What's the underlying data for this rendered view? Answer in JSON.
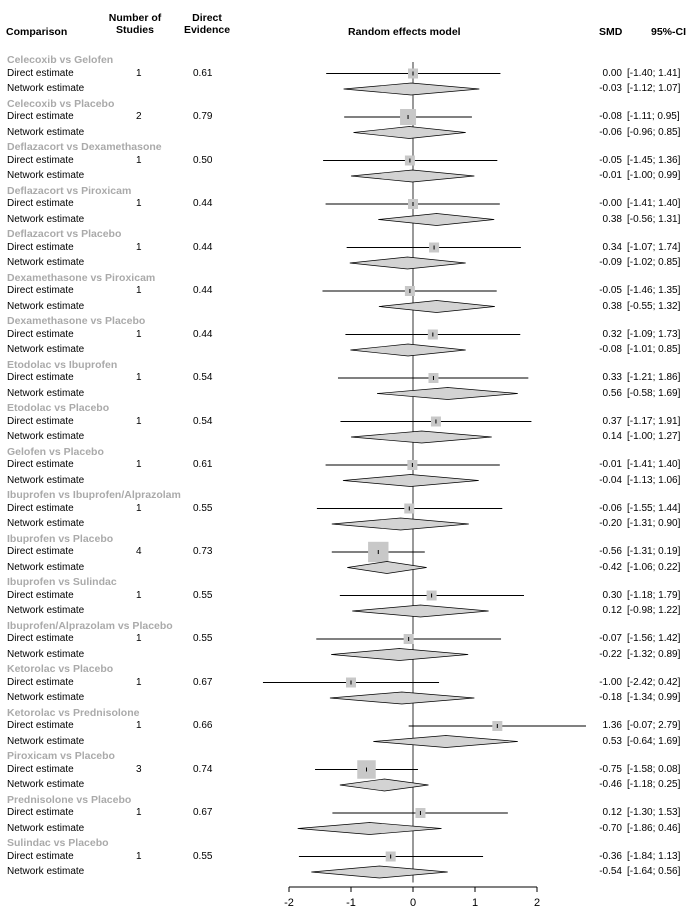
{
  "headers": {
    "comparison": "Comparison",
    "n_studies": "Number of\nStudies",
    "direct_evidence": "Direct\nEvidence",
    "model": "Random effects model",
    "smd": "SMD",
    "ci": "95%-CI"
  },
  "colors": {
    "box": "#c8c8c8",
    "diamond": "#d3d3d3",
    "line": "#000000",
    "comparison_text": "#aaaaaa"
  },
  "chart_data": {
    "type": "forest",
    "title": "Random effects model",
    "xlim": [
      -2,
      2
    ],
    "xticks": [
      -2,
      -1,
      0,
      1,
      2
    ],
    "reference_line": 0,
    "rows": [
      {
        "comparison": "Celecoxib vs Gelofen",
        "n": "1",
        "evidence": "0.61",
        "direct": {
          "label": "Direct estimate",
          "smd": 0.0,
          "lo": -1.4,
          "hi": 1.41,
          "text": "0.00",
          "ci": "[-1.40; 1.41]"
        },
        "network": {
          "label": "Network estimate",
          "smd": -0.03,
          "lo": -1.12,
          "hi": 1.07,
          "text": "-0.03",
          "ci": "[-1.12; 1.07]"
        }
      },
      {
        "comparison": "Celecoxib vs Placebo",
        "n": "2",
        "evidence": "0.79",
        "direct": {
          "label": "Direct estimate",
          "smd": -0.08,
          "lo": -1.11,
          "hi": 0.95,
          "text": "-0.08",
          "ci": "[-1.11; 0.95]"
        },
        "network": {
          "label": "Network estimate",
          "smd": -0.06,
          "lo": -0.96,
          "hi": 0.85,
          "text": "-0.06",
          "ci": "[-0.96; 0.85]"
        }
      },
      {
        "comparison": "Deflazacort vs Dexamethasone",
        "n": "1",
        "evidence": "0.50",
        "direct": {
          "label": "Direct estimate",
          "smd": -0.05,
          "lo": -1.45,
          "hi": 1.36,
          "text": "-0.05",
          "ci": "[-1.45; 1.36]"
        },
        "network": {
          "label": "Network estimate",
          "smd": -0.01,
          "lo": -1.0,
          "hi": 0.99,
          "text": "-0.01",
          "ci": "[-1.00; 0.99]"
        }
      },
      {
        "comparison": "Deflazacort vs Piroxicam",
        "n": "1",
        "evidence": "0.44",
        "direct": {
          "label": "Direct estimate",
          "smd": -0.0,
          "lo": -1.41,
          "hi": 1.4,
          "text": "-0.00",
          "ci": "[-1.41; 1.40]"
        },
        "network": {
          "label": "Network estimate",
          "smd": 0.38,
          "lo": -0.56,
          "hi": 1.31,
          "text": "0.38",
          "ci": "[-0.56; 1.31]"
        }
      },
      {
        "comparison": "Deflazacort vs Placebo",
        "n": "1",
        "evidence": "0.44",
        "direct": {
          "label": "Direct estimate",
          "smd": 0.34,
          "lo": -1.07,
          "hi": 1.74,
          "text": "0.34",
          "ci": "[-1.07; 1.74]"
        },
        "network": {
          "label": "Network estimate",
          "smd": -0.09,
          "lo": -1.02,
          "hi": 0.85,
          "text": "-0.09",
          "ci": "[-1.02; 0.85]"
        }
      },
      {
        "comparison": "Dexamethasone vs Piroxicam",
        "n": "1",
        "evidence": "0.44",
        "direct": {
          "label": "Direct estimate",
          "smd": -0.05,
          "lo": -1.46,
          "hi": 1.35,
          "text": "-0.05",
          "ci": "[-1.46; 1.35]"
        },
        "network": {
          "label": "Network estimate",
          "smd": 0.38,
          "lo": -0.55,
          "hi": 1.32,
          "text": "0.38",
          "ci": "[-0.55; 1.32]"
        }
      },
      {
        "comparison": "Dexamethasone vs Placebo",
        "n": "1",
        "evidence": "0.44",
        "direct": {
          "label": "Direct estimate",
          "smd": 0.32,
          "lo": -1.09,
          "hi": 1.73,
          "text": "0.32",
          "ci": "[-1.09; 1.73]"
        },
        "network": {
          "label": "Network estimate",
          "smd": -0.08,
          "lo": -1.01,
          "hi": 0.85,
          "text": "-0.08",
          "ci": "[-1.01; 0.85]"
        }
      },
      {
        "comparison": "Etodolac vs Ibuprofen",
        "n": "1",
        "evidence": "0.54",
        "direct": {
          "label": "Direct estimate",
          "smd": 0.33,
          "lo": -1.21,
          "hi": 1.86,
          "text": "0.33",
          "ci": "[-1.21; 1.86]"
        },
        "network": {
          "label": "Network estimate",
          "smd": 0.56,
          "lo": -0.58,
          "hi": 1.69,
          "text": "0.56",
          "ci": "[-0.58; 1.69]"
        }
      },
      {
        "comparison": "Etodolac vs Placebo",
        "n": "1",
        "evidence": "0.54",
        "direct": {
          "label": "Direct estimate",
          "smd": 0.37,
          "lo": -1.17,
          "hi": 1.91,
          "text": "0.37",
          "ci": "[-1.17; 1.91]"
        },
        "network": {
          "label": "Network estimate",
          "smd": 0.14,
          "lo": -1.0,
          "hi": 1.27,
          "text": "0.14",
          "ci": "[-1.00; 1.27]"
        }
      },
      {
        "comparison": "Gelofen vs Placebo",
        "n": "1",
        "evidence": "0.61",
        "direct": {
          "label": "Direct estimate",
          "smd": -0.01,
          "lo": -1.41,
          "hi": 1.4,
          "text": "-0.01",
          "ci": "[-1.41; 1.40]"
        },
        "network": {
          "label": "Network estimate",
          "smd": -0.04,
          "lo": -1.13,
          "hi": 1.06,
          "text": "-0.04",
          "ci": "[-1.13; 1.06]"
        }
      },
      {
        "comparison": "Ibuprofen vs Ibuprofen/Alprazolam",
        "n": "1",
        "evidence": "0.55",
        "direct": {
          "label": "Direct estimate",
          "smd": -0.06,
          "lo": -1.55,
          "hi": 1.44,
          "text": "-0.06",
          "ci": "[-1.55; 1.44]"
        },
        "network": {
          "label": "Network estimate",
          "smd": -0.2,
          "lo": -1.31,
          "hi": 0.9,
          "text": "-0.20",
          "ci": "[-1.31; 0.90]"
        }
      },
      {
        "comparison": "Ibuprofen vs Placebo",
        "n": "4",
        "evidence": "0.73",
        "direct": {
          "label": "Direct estimate",
          "smd": -0.56,
          "lo": -1.31,
          "hi": 0.19,
          "text": "-0.56",
          "ci": "[-1.31; 0.19]"
        },
        "network": {
          "label": "Network estimate",
          "smd": -0.42,
          "lo": -1.06,
          "hi": 0.22,
          "text": "-0.42",
          "ci": "[-1.06; 0.22]"
        }
      },
      {
        "comparison": "Ibuprofen vs Sulindac",
        "n": "1",
        "evidence": "0.55",
        "direct": {
          "label": "Direct estimate",
          "smd": 0.3,
          "lo": -1.18,
          "hi": 1.79,
          "text": "0.30",
          "ci": "[-1.18; 1.79]"
        },
        "network": {
          "label": "Network estimate",
          "smd": 0.12,
          "lo": -0.98,
          "hi": 1.22,
          "text": "0.12",
          "ci": "[-0.98; 1.22]"
        }
      },
      {
        "comparison": "Ibuprofen/Alprazolam vs Placebo",
        "n": "1",
        "evidence": "0.55",
        "direct": {
          "label": "Direct estimate",
          "smd": -0.07,
          "lo": -1.56,
          "hi": 1.42,
          "text": "-0.07",
          "ci": "[-1.56; 1.42]"
        },
        "network": {
          "label": "Network estimate",
          "smd": -0.22,
          "lo": -1.32,
          "hi": 0.89,
          "text": "-0.22",
          "ci": "[-1.32; 0.89]"
        }
      },
      {
        "comparison": "Ketorolac vs Placebo",
        "n": "1",
        "evidence": "0.67",
        "direct": {
          "label": "Direct estimate",
          "smd": -1.0,
          "lo": -2.42,
          "hi": 0.42,
          "text": "-1.00",
          "ci": "[-2.42; 0.42]"
        },
        "network": {
          "label": "Network estimate",
          "smd": -0.18,
          "lo": -1.34,
          "hi": 0.99,
          "text": "-0.18",
          "ci": "[-1.34; 0.99]"
        }
      },
      {
        "comparison": "Ketorolac vs Prednisolone",
        "n": "1",
        "evidence": "0.66",
        "direct": {
          "label": "Direct estimate",
          "smd": 1.36,
          "lo": -0.07,
          "hi": 2.79,
          "text": "1.36",
          "ci": "[-0.07; 2.79]"
        },
        "network": {
          "label": "Network estimate",
          "smd": 0.53,
          "lo": -0.64,
          "hi": 1.69,
          "text": "0.53",
          "ci": "[-0.64; 1.69]"
        }
      },
      {
        "comparison": "Piroxicam vs Placebo",
        "n": "3",
        "evidence": "0.74",
        "direct": {
          "label": "Direct estimate",
          "smd": -0.75,
          "lo": -1.58,
          "hi": 0.08,
          "text": "-0.75",
          "ci": "[-1.58; 0.08]"
        },
        "network": {
          "label": "Network estimate",
          "smd": -0.46,
          "lo": -1.18,
          "hi": 0.25,
          "text": "-0.46",
          "ci": "[-1.18; 0.25]"
        }
      },
      {
        "comparison": "Prednisolone vs Placebo",
        "n": "1",
        "evidence": "0.67",
        "direct": {
          "label": "Direct estimate",
          "smd": 0.12,
          "lo": -1.3,
          "hi": 1.53,
          "text": "0.12",
          "ci": "[-1.30; 1.53]"
        },
        "network": {
          "label": "Network estimate",
          "smd": -0.7,
          "lo": -1.86,
          "hi": 0.46,
          "text": "-0.70",
          "ci": "[-1.86; 0.46]"
        }
      },
      {
        "comparison": "Sulindac vs Placebo",
        "n": "1",
        "evidence": "0.55",
        "direct": {
          "label": "Direct estimate",
          "smd": -0.36,
          "lo": -1.84,
          "hi": 1.13,
          "text": "-0.36",
          "ci": "[-1.84; 1.13]"
        },
        "network": {
          "label": "Network estimate",
          "smd": -0.54,
          "lo": -1.64,
          "hi": 0.56,
          "text": "-0.54",
          "ci": "[-1.64; 0.56]"
        }
      }
    ]
  }
}
